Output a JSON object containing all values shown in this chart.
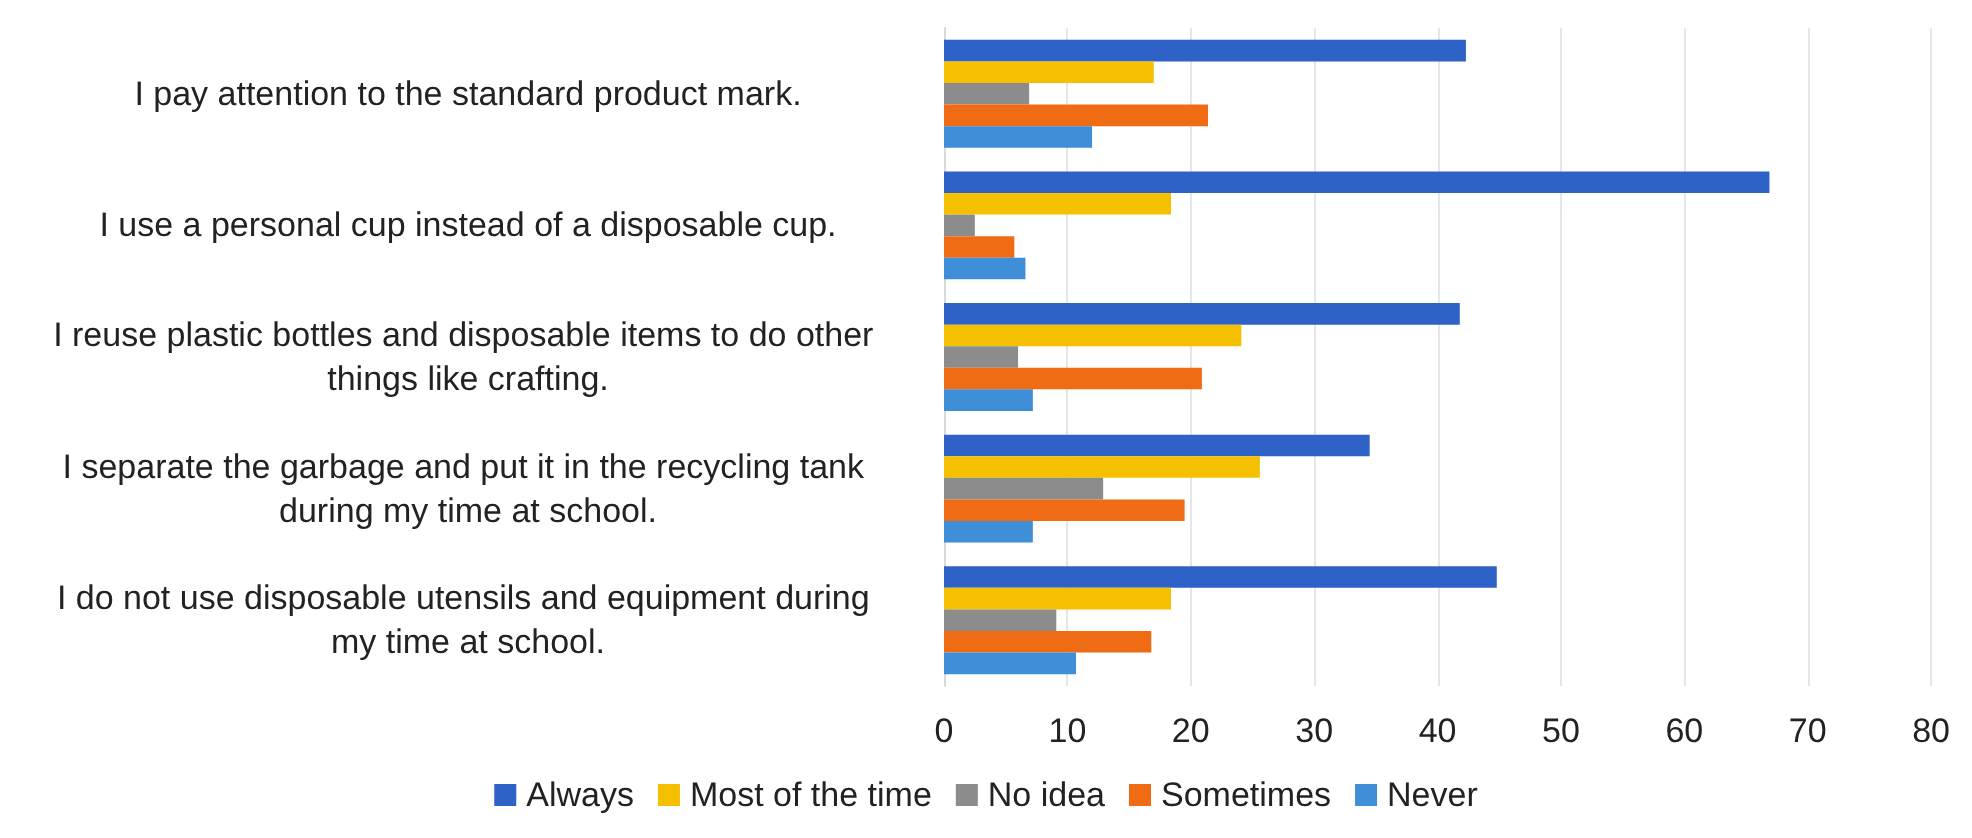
{
  "chart_data": {
    "type": "bar",
    "orientation": "horizontal",
    "categories": [
      "I pay attention to the standard product mark.",
      "I use a personal cup instead of a disposable cup.",
      "I reuse plastic bottles and disposable items to do other things like crafting.",
      "I separate the garbage and put it in the recycling tank during my time at school.",
      "I do not use disposable utensils and equipment during my time at school."
    ],
    "series": [
      {
        "name": "Always",
        "color": "#2e62c7",
        "values": [
          42.3,
          66.9,
          41.8,
          34.5,
          44.8
        ]
      },
      {
        "name": "Most of the time",
        "color": "#f5c000",
        "values": [
          17.0,
          18.4,
          24.1,
          25.6,
          18.4
        ]
      },
      {
        "name": "No idea",
        "color": "#8c8c8c",
        "values": [
          6.9,
          2.5,
          6.0,
          12.9,
          9.1
        ]
      },
      {
        "name": "Sometimes",
        "color": "#f06c14",
        "values": [
          21.4,
          5.7,
          20.9,
          19.5,
          16.8
        ]
      },
      {
        "name": "Never",
        "color": "#3f8ed8",
        "values": [
          12.0,
          6.6,
          7.2,
          7.2,
          10.7
        ]
      }
    ],
    "xlim": [
      0,
      80
    ],
    "xticks": [
      0,
      10,
      20,
      30,
      40,
      50,
      60,
      70,
      80
    ],
    "grid": "x",
    "legend": "bottom"
  }
}
